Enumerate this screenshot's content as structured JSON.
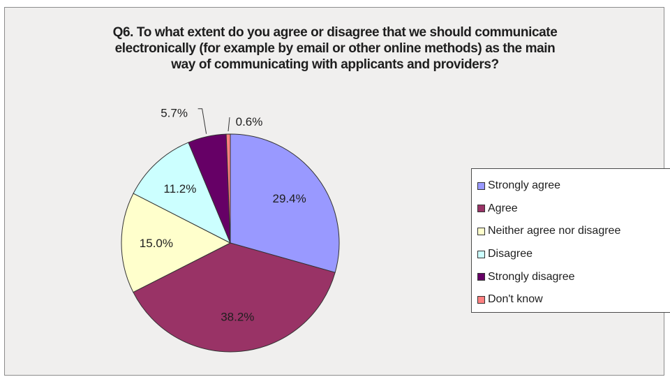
{
  "chart_data": {
    "type": "pie",
    "title_lines": [
      "Q6. To what extent do you agree or disagree that we should communicate",
      "electronically (for example by email or other online methods) as the main",
      "way of communicating with applicants and providers?"
    ],
    "slices": [
      {
        "label": "Strongly agree",
        "value": 29.4,
        "display": "29.4%",
        "color": "#9999ff"
      },
      {
        "label": "Agree",
        "value": 38.2,
        "display": "38.2%",
        "color": "#993366"
      },
      {
        "label": "Neither agree nor disagree",
        "value": 15.0,
        "display": "15.0%",
        "color": "#ffffcc"
      },
      {
        "label": "Disagree",
        "value": 11.2,
        "display": "11.2%",
        "color": "#ccffff"
      },
      {
        "label": "Strongly disagree",
        "value": 5.7,
        "display": "5.7%",
        "color": "#660066"
      },
      {
        "label": "Don't know",
        "value": 0.6,
        "display": "0.6%",
        "color": "#ff8080"
      }
    ],
    "start_angle_deg": 0,
    "direction": "clockwise",
    "legend_position": "right"
  }
}
